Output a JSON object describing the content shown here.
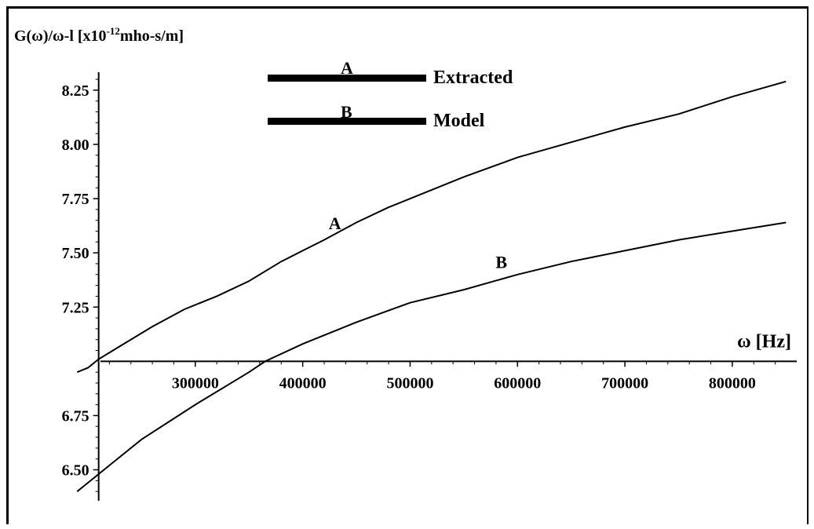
{
  "chart_data": {
    "type": "line",
    "ylabel_main": "G(ω)/ω-l [x10",
    "ylabel_exp": "-12",
    "ylabel_tail": "mho-s/m]",
    "xlabel": "ω [Hz]",
    "xlim": [
      200000,
      860000
    ],
    "ylim": [
      6.35,
      8.34
    ],
    "x_axis_y": 7.0,
    "y_axis_x": 210000,
    "x_ticks": [
      300000,
      400000,
      500000,
      600000,
      700000,
      800000
    ],
    "x_tick_labels": [
      "300000",
      "400000",
      "500000",
      "600000",
      "700000",
      "800000"
    ],
    "y_ticks": [
      6.5,
      6.75,
      7.25,
      7.5,
      7.75,
      8.0,
      8.25
    ],
    "y_tick_labels": [
      "6.50",
      "6.75",
      "7.25",
      "7.50",
      "7.75",
      "8.00",
      "8.25"
    ],
    "legend": [
      {
        "key": "A",
        "label": "Extracted"
      },
      {
        "key": "B",
        "label": "Model"
      }
    ],
    "series": [
      {
        "name": "Extracted",
        "key": "A",
        "x": [
          190000,
          200000,
          210000,
          230000,
          260000,
          290000,
          320000,
          350000,
          380000,
          400000,
          420000,
          450000,
          480000,
          500000,
          550000,
          600000,
          650000,
          700000,
          750000,
          800000,
          850000
        ],
        "y": [
          6.95,
          6.97,
          7.01,
          7.07,
          7.16,
          7.24,
          7.3,
          7.37,
          7.46,
          7.51,
          7.56,
          7.64,
          7.71,
          7.75,
          7.85,
          7.94,
          8.01,
          8.08,
          8.14,
          8.22,
          8.29
        ]
      },
      {
        "name": "Model",
        "key": "B",
        "x": [
          190000,
          200000,
          215000,
          250000,
          300000,
          350000,
          365000,
          400000,
          450000,
          500000,
          550000,
          600000,
          650000,
          700000,
          750000,
          800000,
          850000
        ],
        "y": [
          6.4,
          6.44,
          6.5,
          6.64,
          6.8,
          6.95,
          7.0,
          7.08,
          7.18,
          7.27,
          7.33,
          7.4,
          7.46,
          7.51,
          7.56,
          7.6,
          7.64
        ]
      }
    ],
    "curve_labels": [
      {
        "text": "A",
        "x": 430000,
        "y": 7.61
      },
      {
        "text": "B",
        "x": 585000,
        "y": 7.43
      }
    ]
  }
}
